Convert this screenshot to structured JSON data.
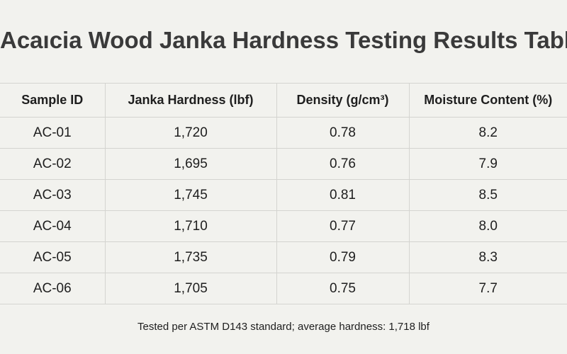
{
  "header": {
    "title": "Acaıcia Wood Janka Hardness Testing Results Table"
  },
  "table": {
    "columns": [
      "Sample ID",
      "Janka Hardness (lbf)",
      "Density (g/cm³)",
      "Moisture Content (%)"
    ],
    "rows": [
      [
        "AC-01",
        "1,720",
        "0.78",
        "8.2"
      ],
      [
        "AC-02",
        "1,695",
        "0.76",
        "7.9"
      ],
      [
        "AC-03",
        "1,745",
        "0.81",
        "8.5"
      ],
      [
        "AC-04",
        "1,710",
        "0.77",
        "8.0"
      ],
      [
        "AC-05",
        "1,735",
        "0.79",
        "8.3"
      ],
      [
        "AC-06",
        "1,705",
        "0.75",
        "7.7"
      ]
    ]
  },
  "footer": {
    "note": "Tested per ASTM D143 standard; average hardness: 1,718 lbf"
  }
}
